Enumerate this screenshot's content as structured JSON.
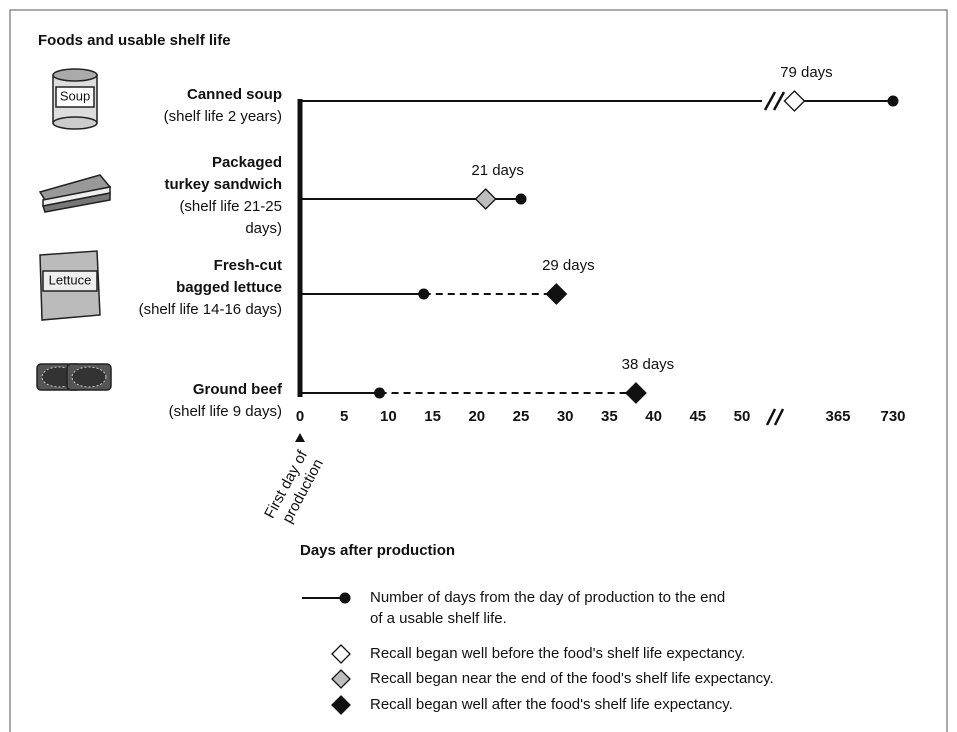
{
  "chart_data": {
    "type": "timeline",
    "title": "Foods and usable shelf life",
    "x_label": "Days after production",
    "start_annotation": [
      "First day of",
      "production"
    ],
    "xlim": [
      0,
      730
    ],
    "xticks": [
      0,
      5,
      10,
      15,
      20,
      25,
      30,
      35,
      40,
      45,
      50,
      365,
      730
    ],
    "axis_break_after": 50,
    "rows": [
      {
        "name_lines": [
          "Canned soup"
        ],
        "note_lines": [
          "(shelf life 2 years)"
        ],
        "icon_label": "Soup",
        "shelf_life_end": 730,
        "recall_day": 79,
        "recall_label": "79 days",
        "recall_color": "#ffffff"
      },
      {
        "name_lines": [
          "Packaged",
          "turkey sandwich"
        ],
        "note_lines": [
          "(shelf life 21-25",
          "days)"
        ],
        "shelf_life_end": 25,
        "recall_day": 21,
        "recall_label": "21 days",
        "recall_color": "#bdbdbd"
      },
      {
        "name_lines": [
          "Fresh-cut",
          "bagged lettuce"
        ],
        "note_lines": [
          "(shelf life 14-16 days)"
        ],
        "icon_label": "Lettuce",
        "shelf_life_end": 14,
        "recall_day": 29,
        "recall_label": "29 days",
        "recall_color": "#111111"
      },
      {
        "name_lines": [
          "Ground beef"
        ],
        "note_lines": [
          "(shelf life 9 days)"
        ],
        "shelf_life_end": 9,
        "recall_day": 38,
        "recall_label": "38 days",
        "recall_color": "#111111"
      }
    ],
    "legend": [
      {
        "symbol": "line-dot",
        "lines": [
          "Number of days from the day of production to the end",
          "of a usable shelf life."
        ]
      },
      {
        "symbol": "diamond",
        "color": "#ffffff",
        "lines": [
          "Recall began well before the food's shelf life expectancy."
        ]
      },
      {
        "symbol": "diamond",
        "color": "#bdbdbd",
        "lines": [
          "Recall began near the end of the food's shelf life expectancy."
        ]
      },
      {
        "symbol": "diamond",
        "color": "#111111",
        "lines": [
          "Recall began well after the food's shelf life expectancy."
        ]
      }
    ]
  }
}
